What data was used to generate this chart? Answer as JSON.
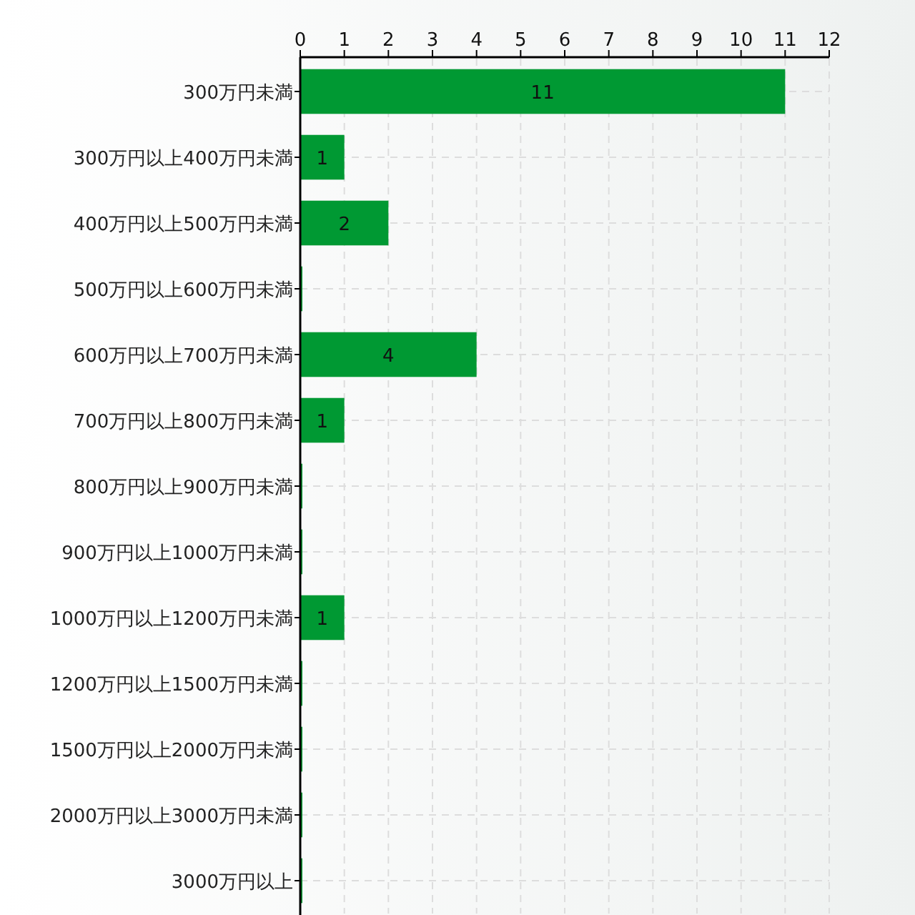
{
  "chart_data": {
    "type": "bar",
    "orientation": "horizontal",
    "categories": [
      "300万円未満",
      "300万円以上400万円未満",
      "400万円以上500万円未満",
      "500万円以上600万円未満",
      "600万円以上700万円未満",
      "700万円以上800万円未満",
      "800万円以上900万円未満",
      "900万円以上1000万円未満",
      "1000万円以上1200万円未満",
      "1200万円以上1500万円未満",
      "1500万円以上2000万円未満",
      "2000万円以上3000万円未満",
      "3000万円以上"
    ],
    "values": [
      11,
      1,
      2,
      0,
      4,
      1,
      0,
      0,
      1,
      0,
      0,
      0,
      0
    ],
    "value_labels": [
      "11",
      "1",
      "2",
      null,
      "4",
      "1",
      null,
      null,
      "1",
      null,
      null,
      null,
      null
    ],
    "color": "#009933",
    "xlim": [
      0,
      12
    ],
    "xticks": [
      0,
      1,
      2,
      3,
      4,
      5,
      6,
      7,
      8,
      9,
      10,
      11,
      12
    ],
    "grid": true
  }
}
